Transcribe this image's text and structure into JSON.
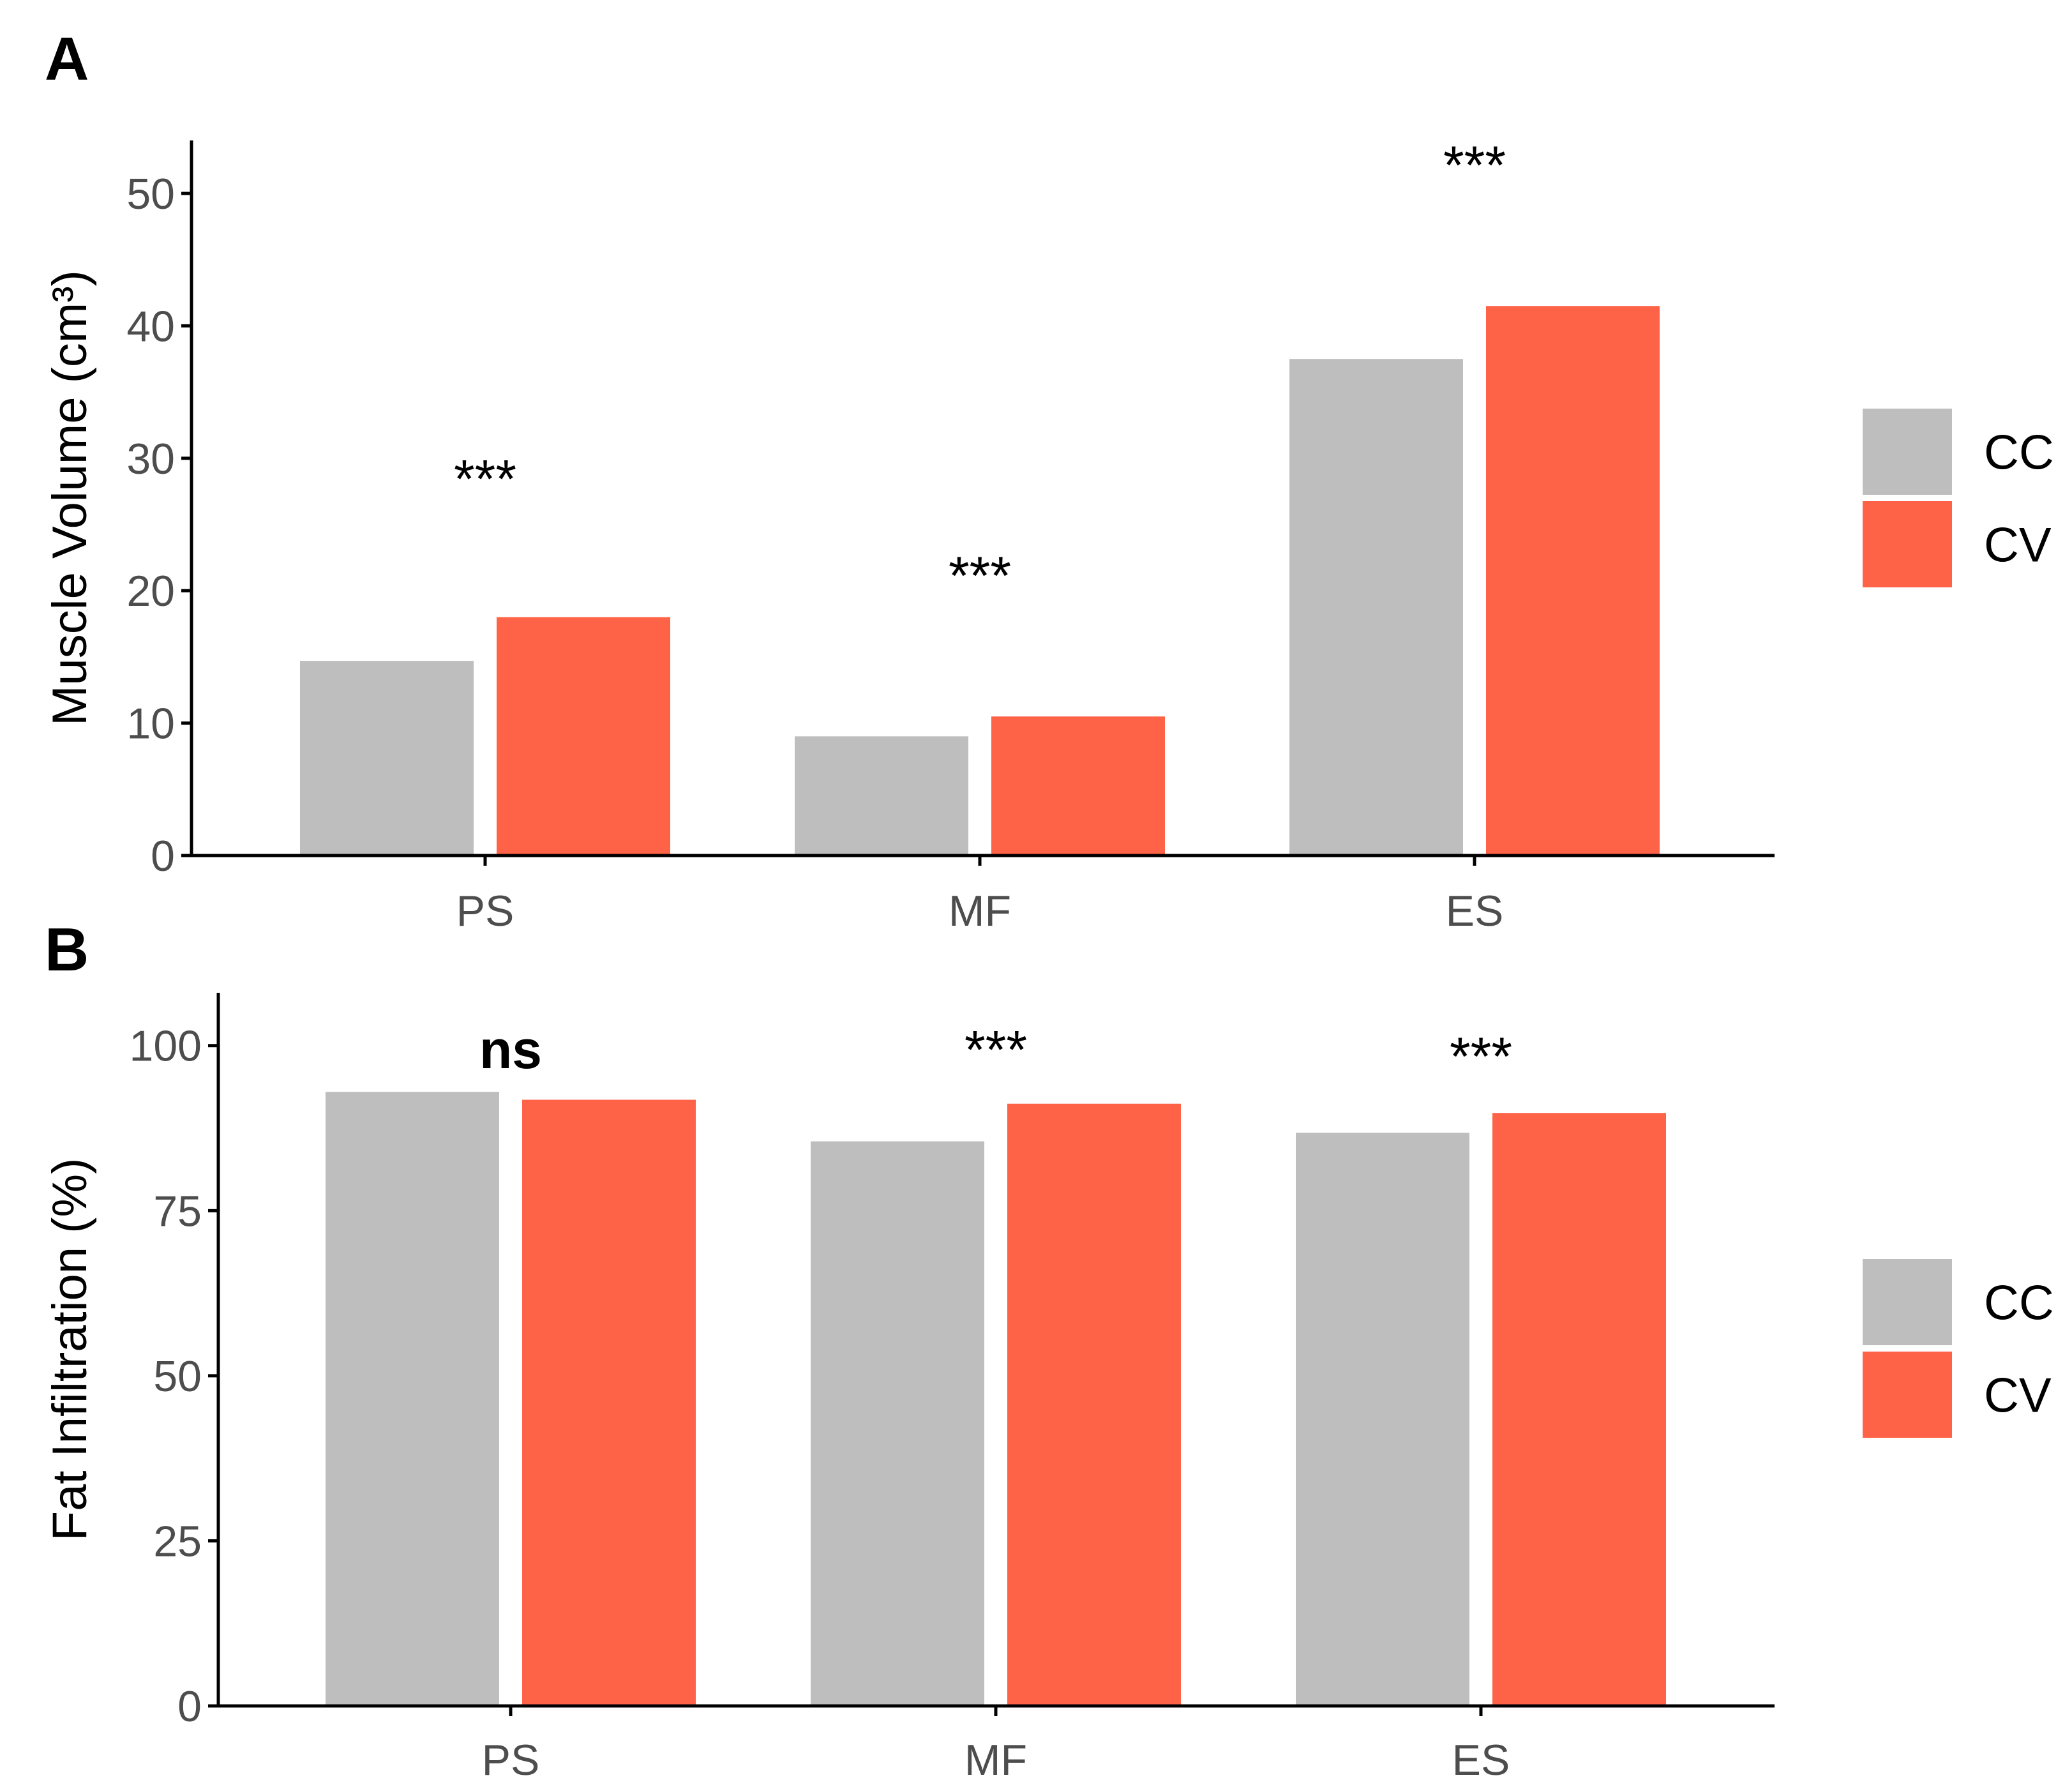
{
  "chart_data": [
    {
      "type": "bar",
      "panel_label": "A",
      "ylabel": "Muscle Volume (cm³)",
      "xlabel": "",
      "categories": [
        "PS",
        "MF",
        "ES"
      ],
      "ylim": [
        0,
        54
      ],
      "yticks": [
        0,
        10,
        20,
        30,
        40,
        50
      ],
      "series": [
        {
          "name": "CC",
          "color": "#bebebe",
          "values": [
            14.7,
            9.0,
            37.5
          ]
        },
        {
          "name": "CV",
          "color": "#ff6347",
          "values": [
            18.0,
            10.5,
            41.5
          ]
        }
      ],
      "annotations": [
        {
          "category": "PS",
          "text": "***",
          "y": 28.5
        },
        {
          "category": "MF",
          "text": "***",
          "y": 21.2
        },
        {
          "category": "ES",
          "text": "***",
          "y": 52.2
        }
      ],
      "legend": {
        "position": "right",
        "entries": [
          "CC",
          "CV"
        ]
      }
    },
    {
      "type": "bar",
      "panel_label": "B",
      "ylabel": "Fat Infiltration (%)",
      "xlabel": "",
      "categories": [
        "PS",
        "MF",
        "ES"
      ],
      "ylim": [
        0,
        108
      ],
      "yticks": [
        0,
        25,
        50,
        75,
        100
      ],
      "series": [
        {
          "name": "CC",
          "color": "#bebebe",
          "values": [
            93.0,
            85.5,
            86.8
          ]
        },
        {
          "name": "CV",
          "color": "#ff6347",
          "values": [
            91.8,
            91.2,
            89.8
          ]
        }
      ],
      "annotations": [
        {
          "category": "PS",
          "text": "ns",
          "y": 99.5,
          "bold": true
        },
        {
          "category": "MF",
          "text": "***",
          "y": 99.5
        },
        {
          "category": "ES",
          "text": "***",
          "y": 98.5
        }
      ],
      "legend": {
        "position": "right",
        "entries": [
          "CC",
          "CV"
        ]
      }
    }
  ]
}
